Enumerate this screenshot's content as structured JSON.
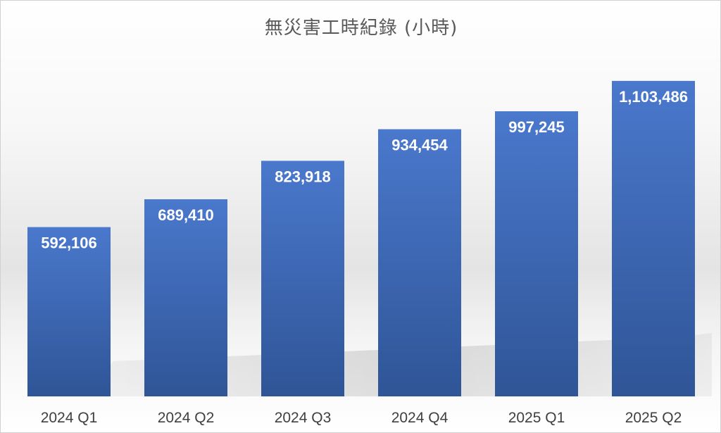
{
  "chart_data": {
    "type": "bar",
    "title": "無災害工時紀錄 (小時)",
    "xlabel": "",
    "ylabel": "",
    "categories": [
      "2024 Q1",
      "2024 Q2",
      "2024 Q3",
      "2024 Q4",
      "2025 Q1",
      "2025 Q2"
    ],
    "values": [
      592106,
      689410,
      823918,
      934454,
      997245,
      1103486
    ],
    "data_labels": [
      "592,106",
      "689,410",
      "823,918",
      "934,454",
      "997,245",
      "1,103,486"
    ],
    "ylim": [
      0,
      1150000
    ],
    "grid": false,
    "legend": "none",
    "bar_color": "#4472C4",
    "bar_color_light": "#4A78CC",
    "bar_color_dark": "#2F5597",
    "label_color": "#FFFFFF",
    "tick_color": "#404040",
    "title_color": "#595959"
  }
}
